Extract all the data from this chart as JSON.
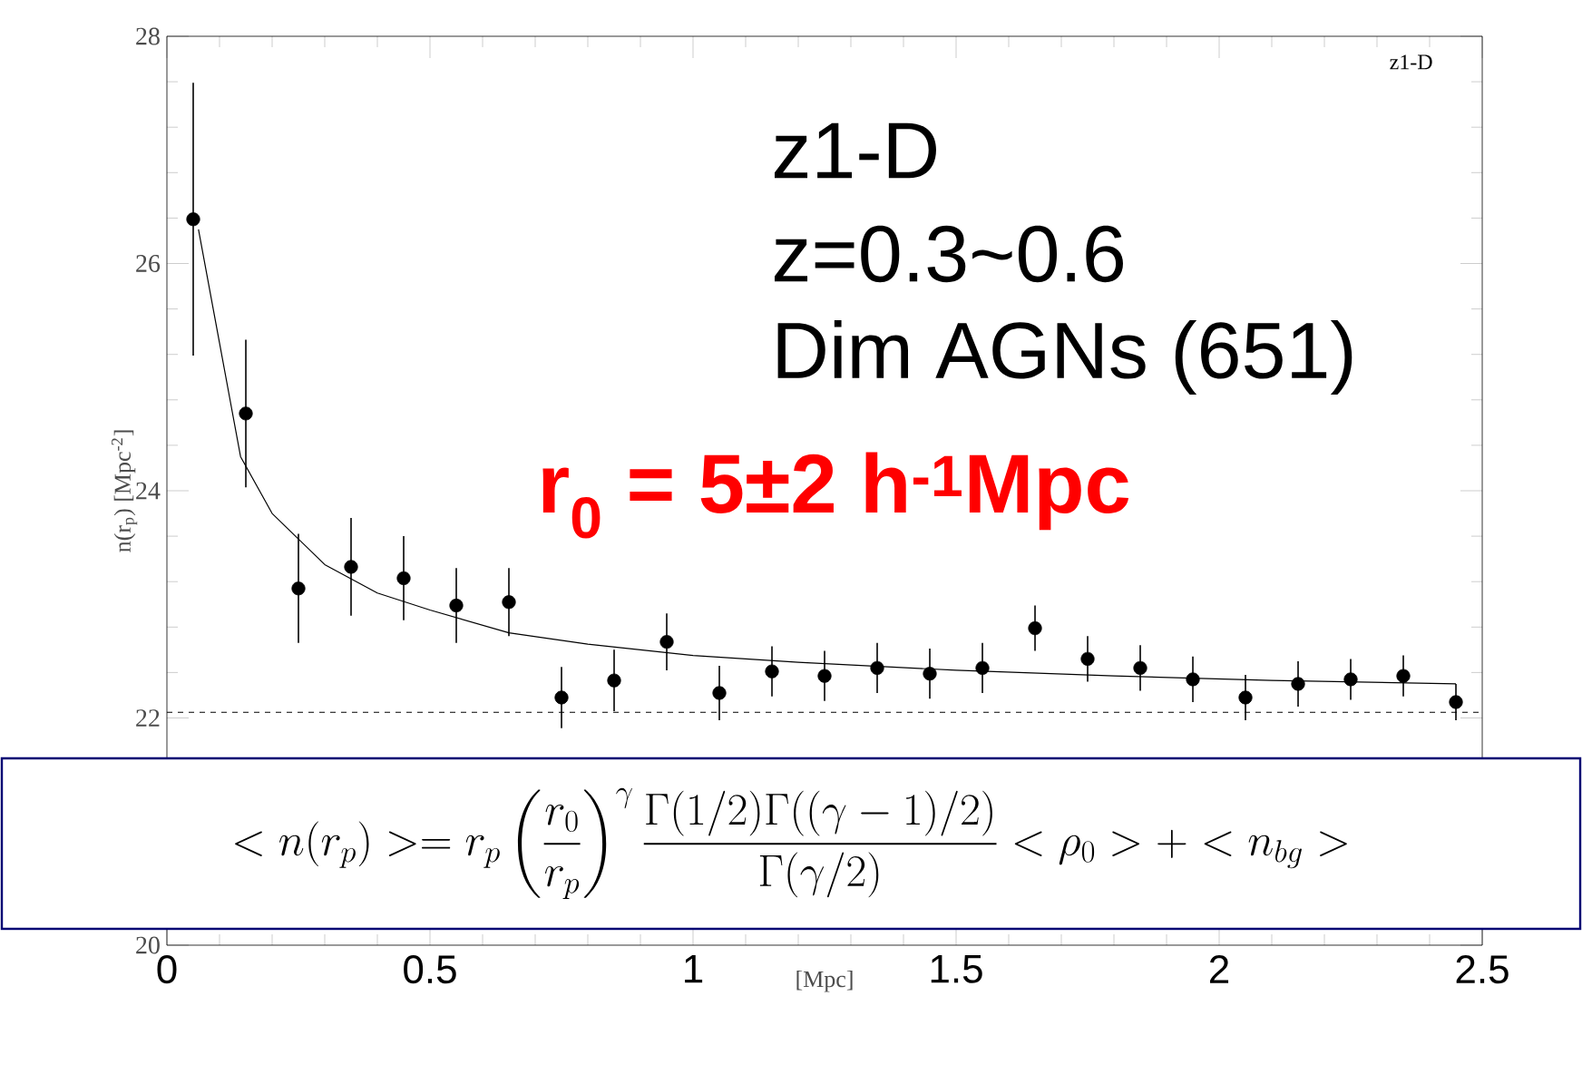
{
  "chart_data": {
    "type": "scatter",
    "xlabel": "[Mpc]",
    "ylabel": "n(r$_{p}$) [Mpc$^{-2}$]",
    "xlim": [
      0,
      2.5
    ],
    "ylim": [
      20,
      28
    ],
    "xticks": [
      0,
      0.5,
      1,
      1.5,
      2,
      2.5
    ],
    "yticks": [
      20,
      22,
      24,
      26,
      28
    ],
    "series": [
      {
        "color": "#000000",
        "marker": "circle",
        "x": [
          0.05,
          0.15,
          0.25,
          0.35,
          0.45,
          0.55,
          0.65,
          0.75,
          0.85,
          0.95,
          1.05,
          1.15,
          1.25,
          1.35,
          1.45,
          1.55,
          1.65,
          1.75,
          1.85,
          1.95,
          2.05,
          2.15,
          2.25,
          2.35,
          2.45
        ],
        "values": [
          26.39,
          24.68,
          23.14,
          23.33,
          23.23,
          22.99,
          23.02,
          22.18,
          22.33,
          22.67,
          22.22,
          22.41,
          22.37,
          22.44,
          22.39,
          22.44,
          22.79,
          22.52,
          22.44,
          22.34,
          22.18,
          22.3,
          22.34,
          22.37,
          22.14
        ],
        "errors": [
          1.2,
          0.65,
          0.48,
          0.43,
          0.37,
          0.33,
          0.3,
          0.27,
          0.27,
          0.25,
          0.24,
          0.22,
          0.22,
          0.22,
          0.22,
          0.22,
          0.2,
          0.2,
          0.2,
          0.2,
          0.2,
          0.2,
          0.18,
          0.18,
          0.16
        ]
      },
      {
        "type": "line",
        "color": "#000000",
        "marker": "none",
        "x": [
          0.06,
          0.1,
          0.14,
          0.2,
          0.3,
          0.4,
          0.5,
          0.65,
          0.8,
          1.0,
          1.2,
          1.5,
          1.8,
          2.1,
          2.45
        ],
        "values": [
          26.3,
          25.3,
          24.3,
          23.8,
          23.35,
          23.1,
          22.95,
          22.75,
          22.65,
          22.55,
          22.49,
          22.42,
          22.37,
          22.33,
          22.3
        ]
      }
    ],
    "ref_lines": [
      {
        "axis": "y",
        "value": 22.05,
        "line_style": "dashed"
      }
    ],
    "annotations": [
      "z1-D",
      "z1-D",
      "z=0.3~0.6",
      "Dim AGNs (651)",
      "r$_{0}$ = 5±2 h$^{-1}$Mpc",
      "< n(r_p) >= r_p \\left(\\frac{r_0}{r_p}\\right)^{\\gamma} \\frac{\\Gamma(1/2)\\Gamma((\\gamma-1)/2)}{\\Gamma(\\gamma/2)} < \\rho_0 > + < n_{bg} >"
    ]
  }
}
